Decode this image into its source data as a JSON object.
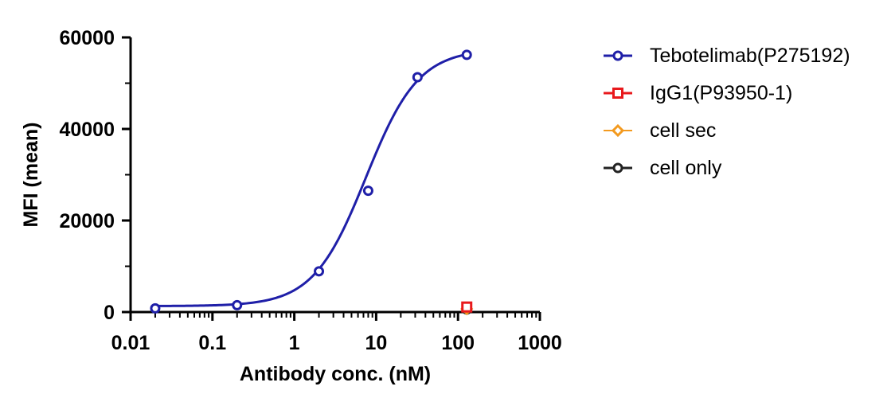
{
  "chart_data": {
    "type": "scatter",
    "title": "",
    "xlabel": "Antibody conc. (nM)",
    "ylabel": "MFI (mean)",
    "x_scale": "log",
    "xlim": [
      0.01,
      1000
    ],
    "ylim": [
      0,
      60000
    ],
    "x_ticks": [
      "0.01",
      "0.1",
      "1",
      "10",
      "100",
      "1000"
    ],
    "y_ticks": [
      "0",
      "20000",
      "40000",
      "60000"
    ],
    "grid": false,
    "legend_position": "right",
    "series": [
      {
        "name": "Tebotelimab(P275192)",
        "color": "#1f1fa8",
        "marker": "circle",
        "fit": "sigmoidal",
        "fit_params": {
          "bottom": 1300,
          "top": 57500,
          "ec50": 7.5,
          "hill": 1.35
        },
        "points": [
          {
            "x": 0.02,
            "y": 800
          },
          {
            "x": 0.2,
            "y": 1500
          },
          {
            "x": 2,
            "y": 8900
          },
          {
            "x": 8,
            "y": 26500
          },
          {
            "x": 32,
            "y": 51300
          },
          {
            "x": 128,
            "y": 56200
          }
        ]
      },
      {
        "name": "IgG1(P93950-1)",
        "color": "#e8191c",
        "marker": "square",
        "points": [
          {
            "x": 128,
            "y": 1100
          }
        ]
      },
      {
        "name": "cell sec",
        "color": "#f39a1f",
        "marker": "diamond",
        "points": [
          {
            "x": 128,
            "y": 700
          }
        ]
      },
      {
        "name": "cell only",
        "color": "#222222",
        "marker": "circle",
        "points": [
          {
            "x": 128,
            "y": 550
          }
        ]
      }
    ]
  }
}
